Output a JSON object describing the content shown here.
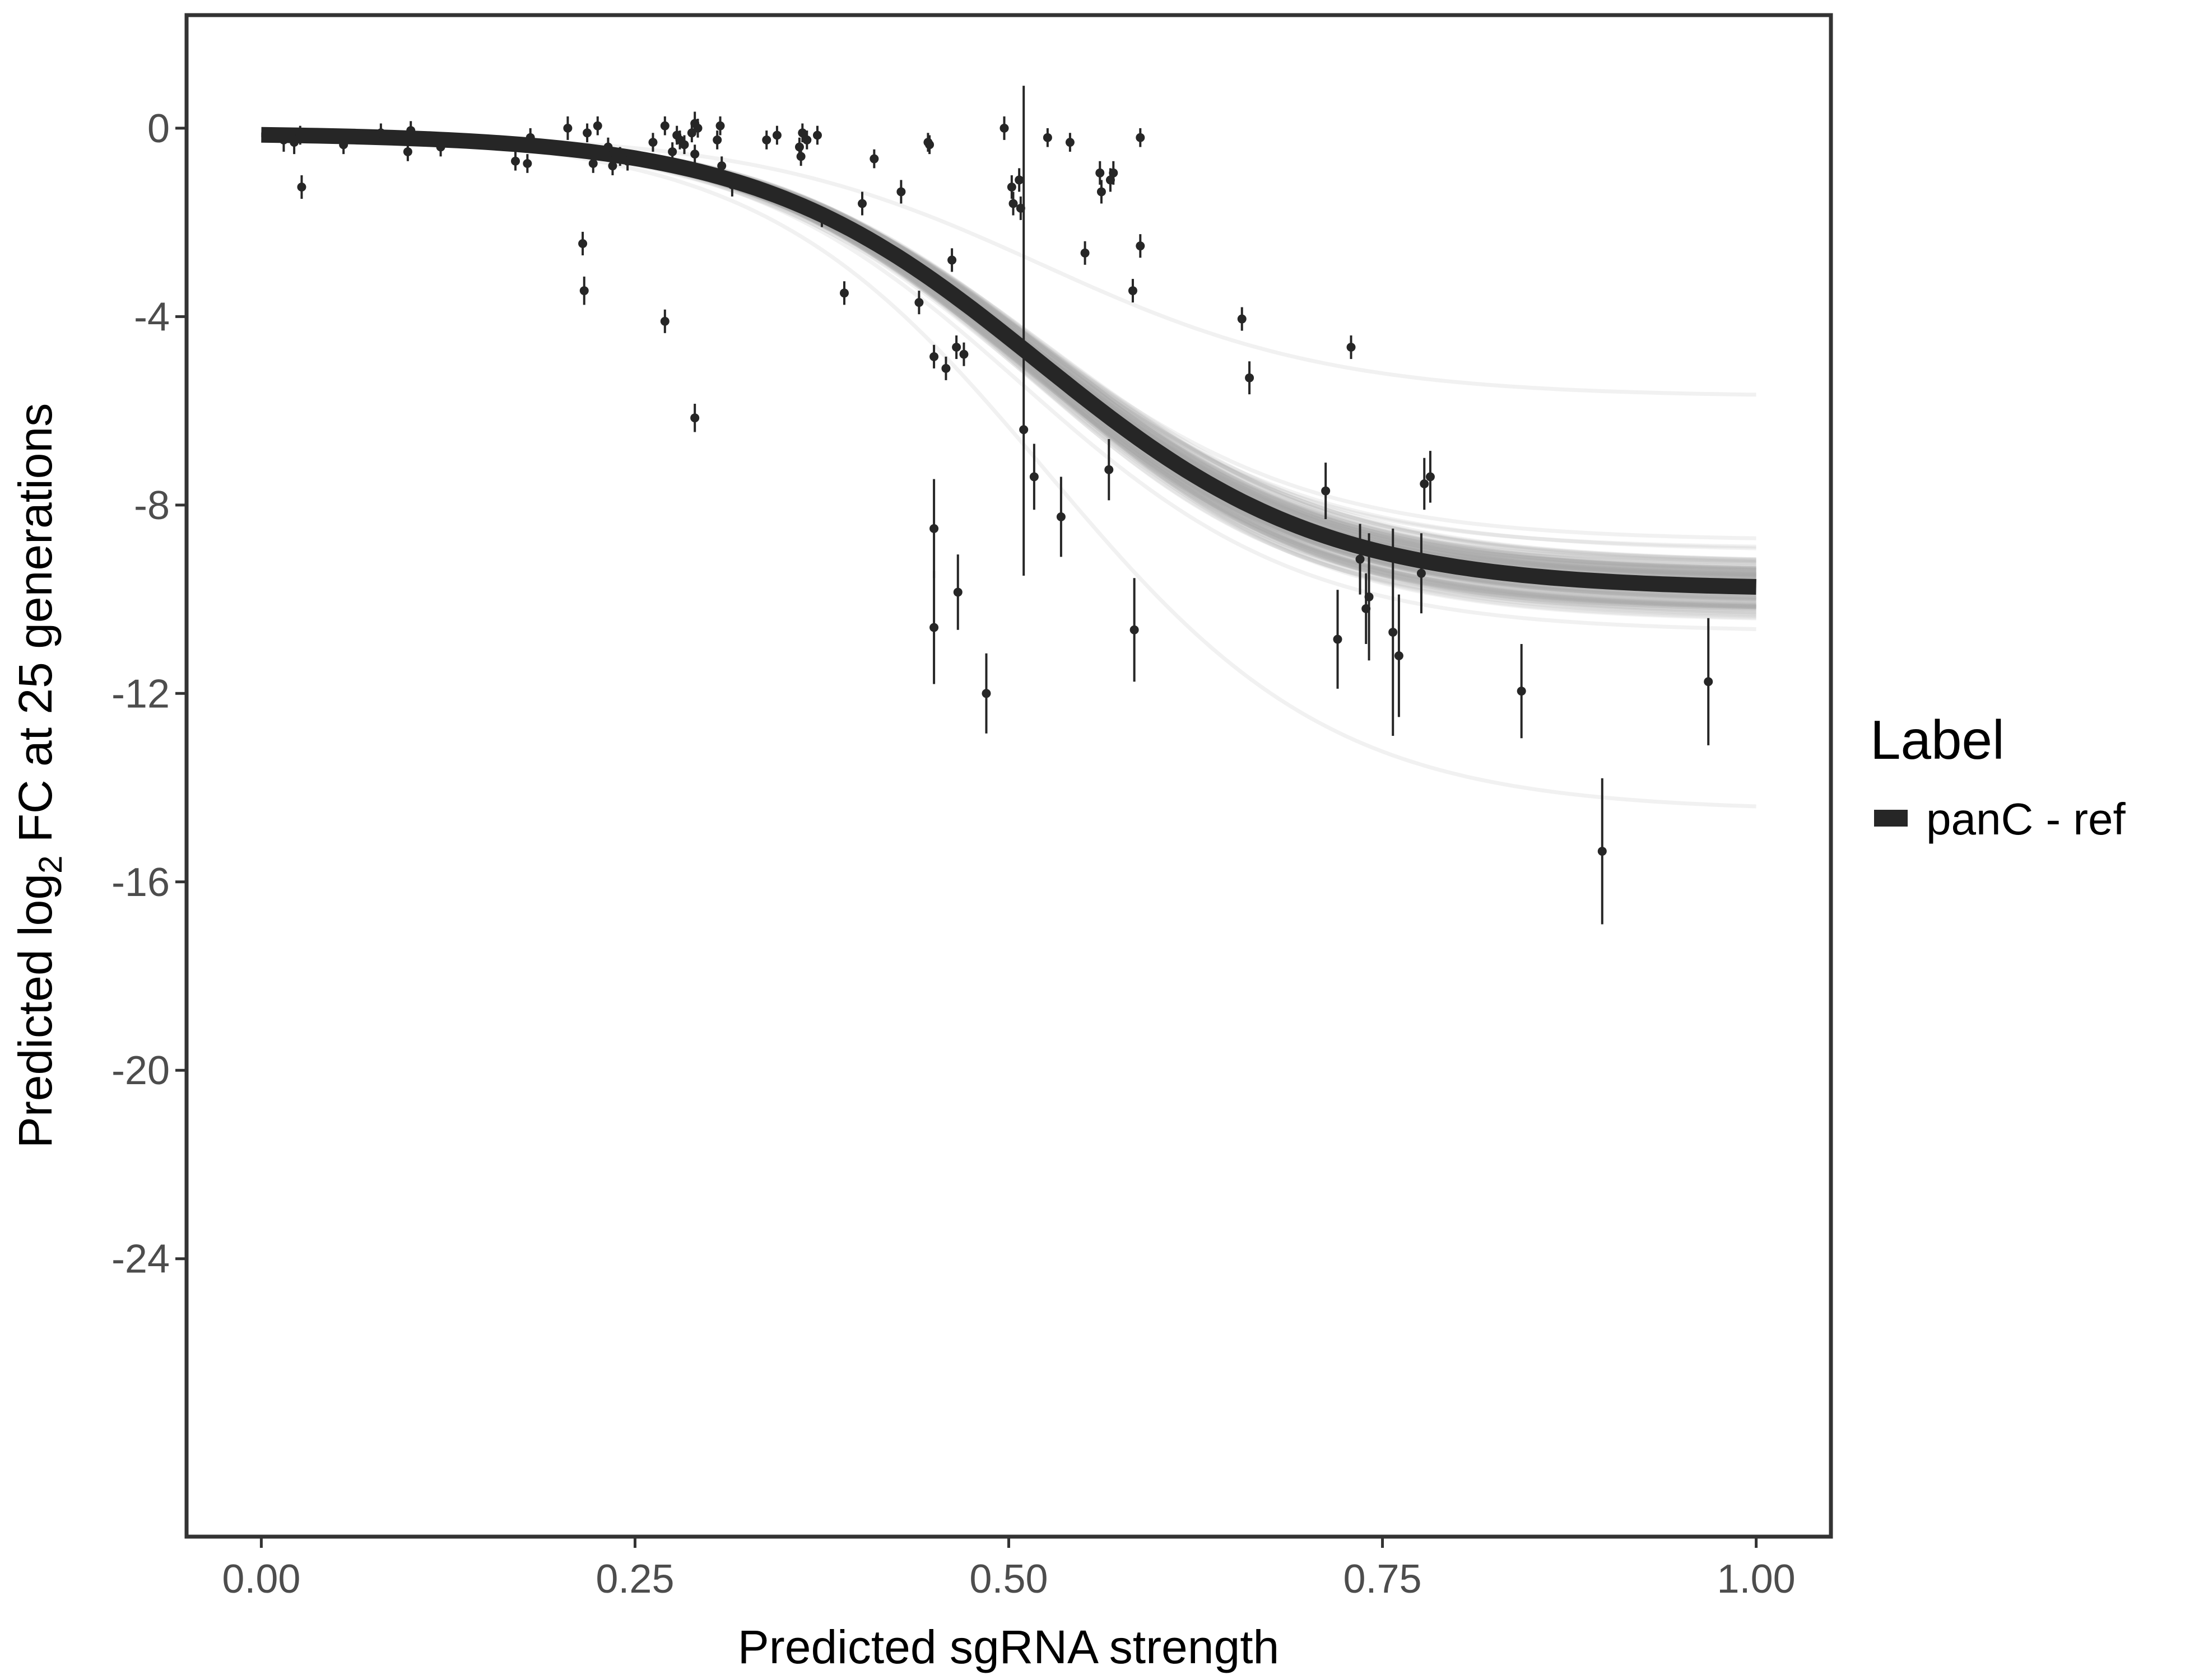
{
  "chart_data": {
    "type": "line+scatter",
    "title": "",
    "xlabel": "Predicted sgRNA strength",
    "ylabel": {
      "prefix": "Predicted  log",
      "subscript": "2",
      "suffix": " FC at 25 generations"
    },
    "xlim": [
      -0.05,
      1.05
    ],
    "ylim": [
      -29.9,
      2.4
    ],
    "x_ticks": [
      0,
      0.25,
      0.5,
      0.75,
      1
    ],
    "x_tick_labels": [
      "0.00",
      "0.25",
      "0.50",
      "0.75",
      "1.00"
    ],
    "y_ticks": [
      0,
      -4,
      -8,
      -12,
      -16,
      -20,
      -24
    ],
    "y_tick_labels": [
      "0",
      "-4",
      "-8",
      "-12",
      "-16",
      "-20",
      "-24"
    ],
    "grid": false,
    "legend": {
      "position": "right",
      "title": "Label",
      "entries": [
        {
          "label": "panC - ref",
          "color": "#262626"
        }
      ]
    },
    "fit_curve": {
      "name": "panC - ref",
      "model": "logistic",
      "lower": -9.8,
      "upper": -0.1,
      "midpoint": 0.52,
      "slope": 10.5,
      "color": "#262626"
    },
    "posterior_curves": {
      "count": 160,
      "lower_range": [
        -14.5,
        -5.7
      ],
      "midpoint_range": [
        0.47,
        0.57
      ],
      "slope_range": [
        8.5,
        12.5
      ],
      "color": "#a9a9a9"
    },
    "points": [
      {
        "x": 0.015,
        "y": -0.25,
        "lo": -0.5,
        "hi": 0.0
      },
      {
        "x": 0.022,
        "y": -0.3,
        "lo": -0.55,
        "hi": -0.05
      },
      {
        "x": 0.026,
        "y": -0.15,
        "lo": -0.35,
        "hi": 0.05
      },
      {
        "x": 0.027,
        "y": -1.25,
        "lo": -1.5,
        "hi": -1.0
      },
      {
        "x": 0.055,
        "y": -0.35,
        "lo": -0.55,
        "hi": -0.15
      },
      {
        "x": 0.08,
        "y": -0.1,
        "lo": -0.3,
        "hi": 0.1
      },
      {
        "x": 0.098,
        "y": -0.5,
        "lo": -0.7,
        "hi": -0.3
      },
      {
        "x": 0.1,
        "y": -0.05,
        "lo": -0.25,
        "hi": 0.15
      },
      {
        "x": 0.12,
        "y": -0.4,
        "lo": -0.6,
        "hi": -0.2
      },
      {
        "x": 0.17,
        "y": -0.7,
        "lo": -0.9,
        "hi": -0.5
      },
      {
        "x": 0.178,
        "y": -0.75,
        "lo": -0.95,
        "hi": -0.55
      },
      {
        "x": 0.18,
        "y": -0.2,
        "lo": -0.4,
        "hi": 0.0
      },
      {
        "x": 0.205,
        "y": 0.0,
        "lo": -0.25,
        "hi": 0.25
      },
      {
        "x": 0.215,
        "y": -2.45,
        "lo": -2.7,
        "hi": -2.2
      },
      {
        "x": 0.216,
        "y": -3.45,
        "lo": -3.75,
        "hi": -3.15
      },
      {
        "x": 0.218,
        "y": -0.1,
        "lo": -0.3,
        "hi": 0.1
      },
      {
        "x": 0.222,
        "y": -0.75,
        "lo": -0.95,
        "hi": -0.55
      },
      {
        "x": 0.225,
        "y": 0.05,
        "lo": -0.15,
        "hi": 0.25
      },
      {
        "x": 0.232,
        "y": -0.4,
        "lo": -0.6,
        "hi": -0.2
      },
      {
        "x": 0.235,
        "y": -0.8,
        "lo": -1.0,
        "hi": -0.6
      },
      {
        "x": 0.24,
        "y": -0.6,
        "lo": -0.8,
        "hi": -0.4
      },
      {
        "x": 0.245,
        "y": -0.7,
        "lo": -0.9,
        "hi": -0.5
      },
      {
        "x": 0.262,
        "y": -0.3,
        "lo": -0.5,
        "hi": -0.1
      },
      {
        "x": 0.27,
        "y": 0.05,
        "lo": -0.15,
        "hi": 0.25
      },
      {
        "x": 0.27,
        "y": -4.1,
        "lo": -4.35,
        "hi": -3.85
      },
      {
        "x": 0.275,
        "y": -0.5,
        "lo": -0.7,
        "hi": -0.3
      },
      {
        "x": 0.278,
        "y": -0.15,
        "lo": -0.35,
        "hi": 0.05
      },
      {
        "x": 0.28,
        "y": -0.25,
        "lo": -0.45,
        "hi": -0.05
      },
      {
        "x": 0.283,
        "y": -0.35,
        "lo": -0.55,
        "hi": -0.15
      },
      {
        "x": 0.288,
        "y": -0.1,
        "lo": -0.3,
        "hi": 0.1
      },
      {
        "x": 0.29,
        "y": 0.1,
        "lo": -0.15,
        "hi": 0.35
      },
      {
        "x": 0.29,
        "y": -0.55,
        "lo": -0.75,
        "hi": -0.35
      },
      {
        "x": 0.29,
        "y": -6.15,
        "lo": -6.45,
        "hi": -5.85
      },
      {
        "x": 0.292,
        "y": 0.0,
        "lo": -0.2,
        "hi": 0.2
      },
      {
        "x": 0.305,
        "y": -0.25,
        "lo": -0.45,
        "hi": -0.05
      },
      {
        "x": 0.307,
        "y": 0.05,
        "lo": -0.15,
        "hi": 0.25
      },
      {
        "x": 0.308,
        "y": -0.8,
        "lo": -1.0,
        "hi": -0.6
      },
      {
        "x": 0.315,
        "y": -1.2,
        "lo": -1.45,
        "hi": -0.95
      },
      {
        "x": 0.338,
        "y": -0.25,
        "lo": -0.45,
        "hi": -0.05
      },
      {
        "x": 0.345,
        "y": -0.15,
        "lo": -0.35,
        "hi": 0.05
      },
      {
        "x": 0.36,
        "y": -0.4,
        "lo": -0.6,
        "hi": -0.2
      },
      {
        "x": 0.361,
        "y": -0.6,
        "lo": -0.8,
        "hi": -0.4
      },
      {
        "x": 0.362,
        "y": -0.1,
        "lo": -0.3,
        "hi": 0.1
      },
      {
        "x": 0.365,
        "y": -0.25,
        "lo": -0.45,
        "hi": -0.05
      },
      {
        "x": 0.372,
        "y": -0.15,
        "lo": -0.35,
        "hi": 0.05
      },
      {
        "x": 0.375,
        "y": -1.9,
        "lo": -2.1,
        "hi": -1.7
      },
      {
        "x": 0.39,
        "y": -3.5,
        "lo": -3.75,
        "hi": -3.25
      },
      {
        "x": 0.402,
        "y": -1.6,
        "lo": -1.85,
        "hi": -1.35
      },
      {
        "x": 0.41,
        "y": -0.65,
        "lo": -0.85,
        "hi": -0.45
      },
      {
        "x": 0.428,
        "y": -1.35,
        "lo": -1.6,
        "hi": -1.1
      },
      {
        "x": 0.44,
        "y": -3.7,
        "lo": -3.95,
        "hi": -3.45
      },
      {
        "x": 0.446,
        "y": -0.3,
        "lo": -0.5,
        "hi": -0.1
      },
      {
        "x": 0.447,
        "y": -0.35,
        "lo": -0.55,
        "hi": -0.15
      },
      {
        "x": 0.45,
        "y": -4.85,
        "lo": -5.1,
        "hi": -4.6
      },
      {
        "x": 0.45,
        "y": -8.5,
        "lo": -9.55,
        "hi": -7.45
      },
      {
        "x": 0.45,
        "y": -10.6,
        "lo": -11.8,
        "hi": -9.4
      },
      {
        "x": 0.458,
        "y": -5.1,
        "lo": -5.35,
        "hi": -4.85
      },
      {
        "x": 0.462,
        "y": -2.8,
        "lo": -3.05,
        "hi": -2.55
      },
      {
        "x": 0.465,
        "y": -4.65,
        "lo": -4.9,
        "hi": -4.4
      },
      {
        "x": 0.466,
        "y": -9.85,
        "lo": -10.65,
        "hi": -9.05
      },
      {
        "x": 0.47,
        "y": -4.8,
        "lo": -5.05,
        "hi": -4.55
      },
      {
        "x": 0.485,
        "y": -12.0,
        "lo": -12.85,
        "hi": -11.15
      },
      {
        "x": 0.497,
        "y": 0.0,
        "lo": -0.25,
        "hi": 0.25
      },
      {
        "x": 0.502,
        "y": -1.25,
        "lo": -1.5,
        "hi": -1.0
      },
      {
        "x": 0.503,
        "y": -1.6,
        "lo": -1.85,
        "hi": -1.35
      },
      {
        "x": 0.507,
        "y": -1.1,
        "lo": -1.35,
        "hi": -0.85
      },
      {
        "x": 0.508,
        "y": -1.7,
        "lo": -1.95,
        "hi": -1.45
      },
      {
        "x": 0.51,
        "y": -6.4,
        "lo": -9.5,
        "hi": 0.9
      },
      {
        "x": 0.517,
        "y": -7.4,
        "lo": -8.1,
        "hi": -6.7
      },
      {
        "x": 0.526,
        "y": -0.2,
        "lo": -0.4,
        "hi": 0.0
      },
      {
        "x": 0.535,
        "y": -8.25,
        "lo": -9.1,
        "hi": -7.4
      },
      {
        "x": 0.541,
        "y": -0.3,
        "lo": -0.5,
        "hi": -0.1
      },
      {
        "x": 0.551,
        "y": -2.65,
        "lo": -2.9,
        "hi": -2.4
      },
      {
        "x": 0.561,
        "y": -0.95,
        "lo": -1.2,
        "hi": -0.7
      },
      {
        "x": 0.562,
        "y": -1.35,
        "lo": -1.6,
        "hi": -1.1
      },
      {
        "x": 0.568,
        "y": -1.1,
        "lo": -1.35,
        "hi": -0.85
      },
      {
        "x": 0.57,
        "y": -0.95,
        "lo": -1.2,
        "hi": -0.7
      },
      {
        "x": 0.567,
        "y": -7.25,
        "lo": -7.9,
        "hi": -6.6
      },
      {
        "x": 0.583,
        "y": -3.45,
        "lo": -3.7,
        "hi": -3.2
      },
      {
        "x": 0.584,
        "y": -10.65,
        "lo": -11.75,
        "hi": -9.55
      },
      {
        "x": 0.588,
        "y": -2.5,
        "lo": -2.75,
        "hi": -2.25
      },
      {
        "x": 0.588,
        "y": -0.2,
        "lo": -0.4,
        "hi": 0.0
      },
      {
        "x": 0.656,
        "y": -4.05,
        "lo": -4.3,
        "hi": -3.8
      },
      {
        "x": 0.661,
        "y": -5.3,
        "lo": -5.65,
        "hi": -4.95
      },
      {
        "x": 0.712,
        "y": -7.7,
        "lo": -8.3,
        "hi": -7.1
      },
      {
        "x": 0.72,
        "y": -10.85,
        "lo": -11.9,
        "hi": -9.8
      },
      {
        "x": 0.729,
        "y": -4.65,
        "lo": -4.9,
        "hi": -4.4
      },
      {
        "x": 0.735,
        "y": -9.15,
        "lo": -9.9,
        "hi": -8.4
      },
      {
        "x": 0.739,
        "y": -10.2,
        "lo": -10.95,
        "hi": -9.45
      },
      {
        "x": 0.741,
        "y": -9.95,
        "lo": -11.3,
        "hi": -8.6
      },
      {
        "x": 0.757,
        "y": -10.7,
        "lo": -12.9,
        "hi": -8.5
      },
      {
        "x": 0.761,
        "y": -11.2,
        "lo": -12.5,
        "hi": -9.9
      },
      {
        "x": 0.776,
        "y": -9.45,
        "lo": -10.3,
        "hi": -8.6
      },
      {
        "x": 0.778,
        "y": -7.55,
        "lo": -8.1,
        "hi": -7.0
      },
      {
        "x": 0.782,
        "y": -7.4,
        "lo": -7.95,
        "hi": -6.85
      },
      {
        "x": 0.843,
        "y": -11.95,
        "lo": -12.95,
        "hi": -10.95
      },
      {
        "x": 0.897,
        "y": -15.35,
        "lo": -16.9,
        "hi": -13.8
      },
      {
        "x": 0.968,
        "y": -11.75,
        "lo": -13.1,
        "hi": -10.4
      }
    ]
  }
}
